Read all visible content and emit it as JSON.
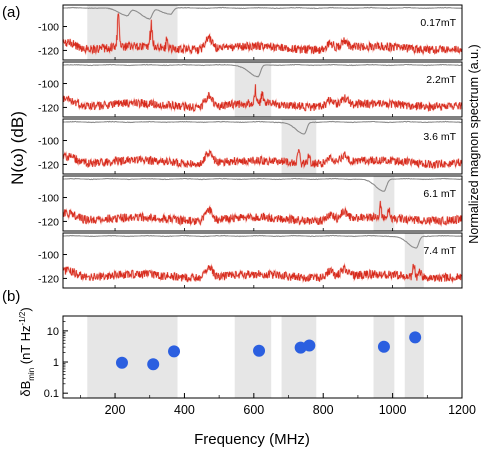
{
  "chart_data": [
    {
      "type": "line",
      "panel_label": "(a)",
      "ylabel": "N(ω) (dB)",
      "ylabel_right": "Normalized magnon spectrum (a.u.)",
      "xlim": [
        50,
        1200
      ],
      "ylim": [
        -128,
        -82
      ],
      "yticks": [
        "-80",
        "-100",
        "-120"
      ],
      "ytick_values": [
        -80,
        -100,
        -120
      ],
      "grid": false,
      "colors": {
        "noise": "#d62a1c",
        "noise_light": "#f08a80",
        "magnon": "#8c8c8c",
        "band": "#e6e6e6"
      },
      "subpanels": [
        {
          "field_label": "0.17mT",
          "band": [
            120,
            380
          ],
          "dips": [
            {
              "f": 235,
              "d": 0.6
            },
            {
              "f": 300,
              "d": 0.9
            },
            {
              "f": 360,
              "d": 0.5
            }
          ],
          "spikes": [
            {
              "f": 210,
              "h": 28
            },
            {
              "f": 305,
              "h": 25
            },
            {
              "f": 350,
              "h": 10
            }
          ]
        },
        {
          "field_label": "2.2mT",
          "band": [
            545,
            650
          ],
          "dips": [
            {
              "f": 612,
              "d": 1.0
            }
          ],
          "spikes": [
            {
              "f": 605,
              "h": 14
            },
            {
              "f": 625,
              "h": 10
            }
          ]
        },
        {
          "field_label": "3.6 mT",
          "band": [
            680,
            780
          ],
          "dips": [
            {
              "f": 745,
              "d": 1.0
            }
          ],
          "spikes": [
            {
              "f": 730,
              "h": 12
            },
            {
              "f": 760,
              "h": 9
            }
          ]
        },
        {
          "field_label": "6.1 mT",
          "band": [
            945,
            1005
          ],
          "dips": [
            {
              "f": 975,
              "d": 1.0
            }
          ],
          "spikes": [
            {
              "f": 965,
              "h": 12
            },
            {
              "f": 990,
              "h": 8
            }
          ]
        },
        {
          "field_label": "7.4 mT",
          "band": [
            1035,
            1090
          ],
          "dips": [
            {
              "f": 1068,
              "d": 1.0
            }
          ],
          "spikes": [
            {
              "f": 1060,
              "h": 12
            },
            {
              "f": 1078,
              "h": 8
            }
          ]
        }
      ],
      "background_features": [
        {
          "f": 470,
          "h": 9
        },
        {
          "f": 820,
          "h": 5
        },
        {
          "f": 860,
          "h": 6
        }
      ]
    },
    {
      "type": "scatter",
      "panel_label": "(b)",
      "xlabel": "Frequency (MHz)",
      "ylabel": "δB_min (nT Hz^-1/2)",
      "xlim": [
        50,
        1200
      ],
      "ylim": [
        0.07,
        30
      ],
      "yscale": "log",
      "xticks": [
        200,
        400,
        600,
        800,
        1000,
        1200
      ],
      "yticks": [
        10,
        1,
        0.1
      ],
      "ytick_labels": [
        "10",
        "1",
        "0.1"
      ],
      "bands": [
        [
          120,
          380
        ],
        [
          545,
          650
        ],
        [
          680,
          780
        ],
        [
          945,
          1005
        ],
        [
          1035,
          1090
        ]
      ],
      "color": "#2b5fe0",
      "points": [
        {
          "x": 220,
          "y": 0.95
        },
        {
          "x": 310,
          "y": 0.85
        },
        {
          "x": 370,
          "y": 2.2
        },
        {
          "x": 615,
          "y": 2.3
        },
        {
          "x": 735,
          "y": 2.9
        },
        {
          "x": 760,
          "y": 3.4
        },
        {
          "x": 975,
          "y": 3.1
        },
        {
          "x": 1065,
          "y": 6.2
        }
      ]
    }
  ]
}
